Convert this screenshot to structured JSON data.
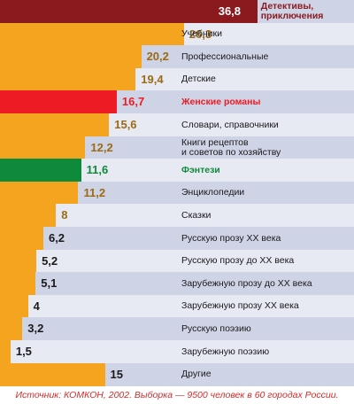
{
  "chart_data": {
    "type": "bar",
    "orientation": "horizontal",
    "categories": [
      "Детективы,\nприключения",
      "Учебники",
      "Профессиональные",
      "Детские",
      "Женские романы",
      "Словари, справочники",
      "Книги рецептов\nи советов по хозяйству",
      "Фэнтези",
      "Энциклопедии",
      "Сказки",
      "Русскую прозу XX века",
      "Русскую прозу до XX века",
      "Зарубежную прозу до XX века",
      "Зарубежную прозу XX века",
      "Русскую поэзию",
      "Зарубежную поэзию",
      "Другие"
    ],
    "value_labels": [
      "36,8",
      "26,3",
      "20,2",
      "19,4",
      "16,7",
      "15,6",
      "12,2",
      "11,6",
      "11,2",
      "8",
      "6,2",
      "5,2",
      "5,1",
      "4",
      "3,2",
      "1,5",
      "15"
    ],
    "values": [
      36.8,
      26.3,
      20.2,
      19.4,
      16.7,
      15.6,
      12.2,
      11.6,
      11.2,
      8,
      6.2,
      5.2,
      5.1,
      4,
      3.2,
      1.5,
      15
    ],
    "xlim": [
      0,
      40
    ],
    "bar_colors": [
      "#8b1a1f",
      "#f5a41f",
      "#f5a41f",
      "#f5a41f",
      "#ed1c24",
      "#f5a41f",
      "#f5a41f",
      "#0f8a3c",
      "#f5a41f",
      "#f5a41f",
      "#f5a41f",
      "#f5a41f",
      "#f5a41f",
      "#f5a41f",
      "#f5a41f",
      "#f5a41f",
      "#f5a41f"
    ],
    "value_colors": [
      "#ffffff",
      "#9c6a14",
      "#9c6a14",
      "#9c6a14",
      "#ed1c24",
      "#9c6a14",
      "#9c6a14",
      "#0f8a3c",
      "#9c6a14",
      "#9c6a14",
      "#1a1a1a",
      "#1a1a1a",
      "#1a1a1a",
      "#1a1a1a",
      "#1a1a1a",
      "#1a1a1a",
      "#1a1a1a"
    ],
    "label_colors": [
      "#8b1a1f",
      "#1a1a1a",
      "#1a1a1a",
      "#1a1a1a",
      "#ed1c24",
      "#1a1a1a",
      "#1a1a1a",
      "#0f8a3c",
      "#1a1a1a",
      "#1a1a1a",
      "#1a1a1a",
      "#1a1a1a",
      "#1a1a1a",
      "#1a1a1a",
      "#1a1a1a",
      "#1a1a1a",
      "#1a1a1a"
    ],
    "highlighted": [
      0,
      4,
      7
    ],
    "grid": false,
    "legend": "none",
    "footnote": "Источник: КОМКОН, 2002. Выборка — 9500 человек в 60 городах России."
  }
}
